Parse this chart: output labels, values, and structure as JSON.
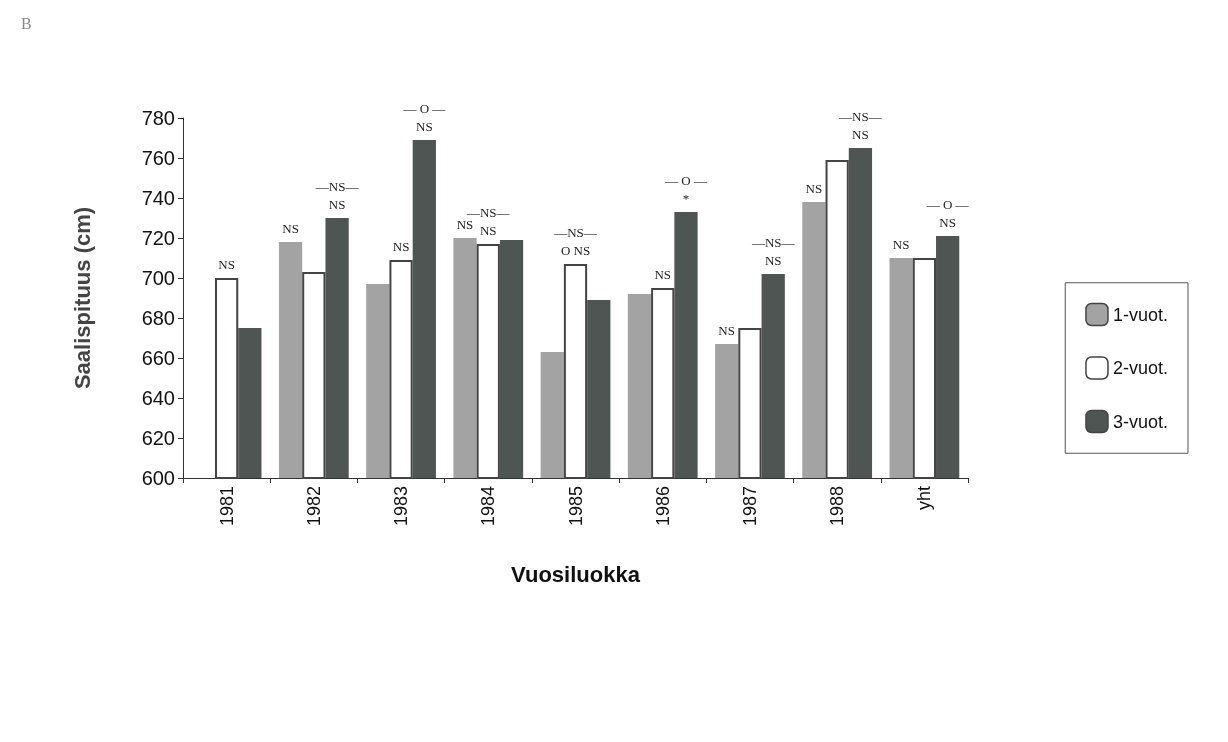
{
  "chart_data": {
    "type": "bar",
    "title": "B",
    "xlabel": "Vuosiluokka",
    "ylabel": "Saalispituus (cm)",
    "categories": [
      "1981",
      "1982",
      "1983",
      "1984",
      "1985",
      "1986",
      "1987",
      "1988",
      "yht"
    ],
    "series": [
      {
        "name": "1-vuot.",
        "color": "#a3a3a3",
        "values": [
          null,
          718,
          697,
          720,
          663,
          692,
          667,
          738,
          710
        ],
        "value_labels": [
          null,
          "NS",
          null,
          "NS",
          null,
          null,
          "NS",
          "NS",
          "NS"
        ]
      },
      {
        "name": "2-vuot.",
        "color": "#ffffff",
        "values": [
          700,
          703,
          709,
          717,
          707,
          695,
          675,
          759,
          710
        ],
        "value_labels": [
          "NS",
          null,
          "NS",
          "—NS—\nNS",
          "—NS—\nO NS",
          "NS",
          null,
          null,
          null
        ]
      },
      {
        "name": "3-vuot.",
        "color": "#4f5553",
        "values": [
          675,
          730,
          769,
          719,
          689,
          733,
          702,
          765,
          721
        ],
        "value_labels": [
          null,
          "—NS—\nNS",
          "— O —\nNS",
          null,
          null,
          "— O —\n*",
          "—NS—\nNS",
          "—NS—\nNS",
          "— O —\nNS"
        ]
      }
    ],
    "ylim": [
      600,
      780
    ],
    "yticks": [
      600,
      620,
      640,
      660,
      680,
      700,
      720,
      740,
      760,
      780
    ],
    "grid": false,
    "legend": "right"
  }
}
